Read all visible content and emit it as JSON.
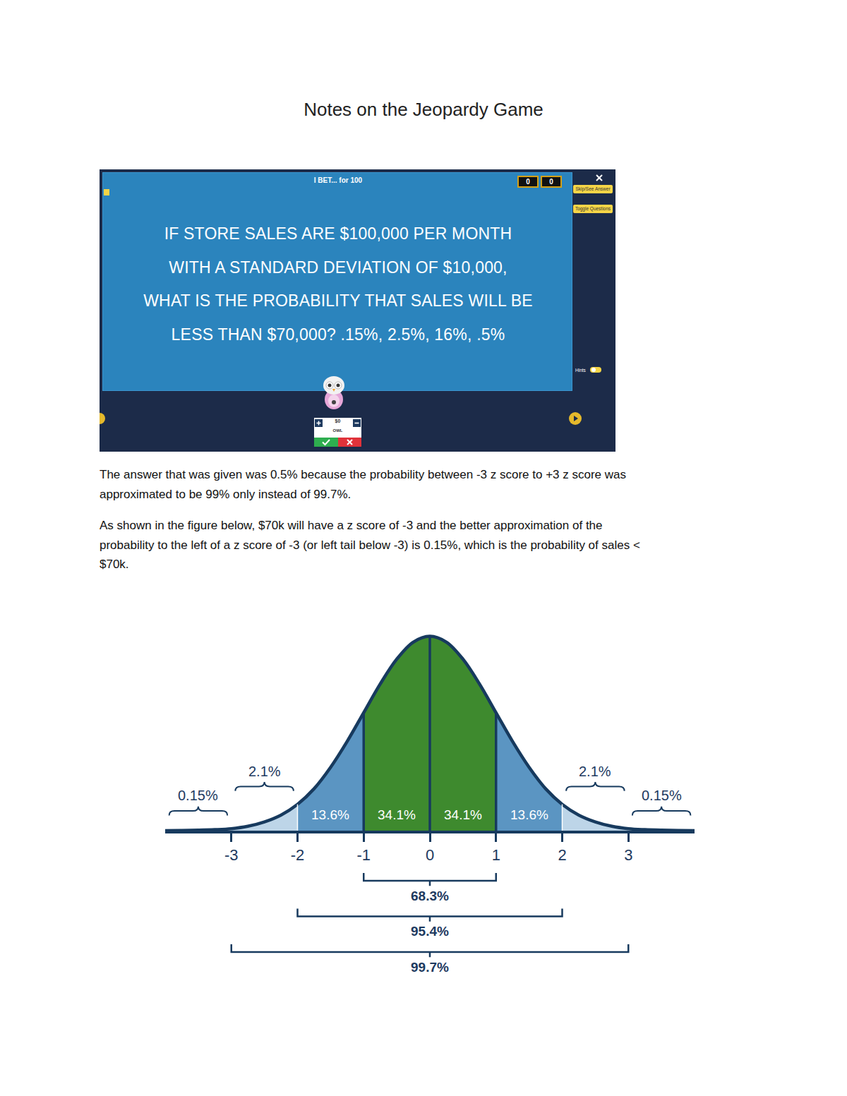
{
  "title": "Notes on the Jeopardy Game",
  "screenshot": {
    "header": "I BET... for 100",
    "scores": [
      0,
      0
    ],
    "buttons": [
      "Skip/See Answer",
      "Toggle Questions"
    ],
    "hints": "Hints",
    "question_lines": [
      "IF STORE SALES ARE $100,000 PER MONTH",
      "WITH A STANDARD DEVIATION OF $10,000,",
      "WHAT IS THE PROBABILITY THAT SALES WILL BE",
      "LESS THAN $70,000? .15%, 2.5%, 16%, .5%"
    ],
    "player": {
      "score": "$0",
      "name": "OWL"
    }
  },
  "paragraphs": [
    [
      "The answer that was given was 0.5% because the probability between -3 z score to +3 z score was",
      "approximated to be 99% only instead of 99.7%."
    ],
    [
      "As shown in the figure below, $70k will have a z score of -3 and the better approximation of the",
      "probability to the left of a z score of -3 (or left tail below -3) is 0.15%, which is the probability of sales <",
      "$70k."
    ]
  ],
  "chart_data": {
    "type": "area",
    "x": [
      -4,
      -3.75,
      -3.5,
      -3.25,
      -3,
      -2.75,
      -2.5,
      -2.25,
      -2,
      -1.75,
      -1.5,
      -1.25,
      -1,
      -0.75,
      -0.5,
      -0.25,
      0,
      0.25,
      0.5,
      0.75,
      1,
      1.25,
      1.5,
      1.75,
      2,
      2.25,
      2.5,
      2.75,
      3,
      3.25,
      3.5,
      3.75,
      4
    ],
    "values": [
      0.0001,
      0.0004,
      0.001,
      0.002,
      0.004,
      0.009,
      0.018,
      0.032,
      0.054,
      0.086,
      0.13,
      0.183,
      0.242,
      0.301,
      0.352,
      0.387,
      0.399,
      0.387,
      0.352,
      0.301,
      0.242,
      0.183,
      0.13,
      0.086,
      0.054,
      0.032,
      0.018,
      0.009,
      0.004,
      0.002,
      0.001,
      0.0004,
      0.0001
    ],
    "color": "#173a5e",
    "xlim": [
      -4,
      4
    ],
    "ylim": [
      0,
      0.42
    ],
    "xticks": [
      -3,
      -2,
      -1,
      0,
      1,
      2,
      3
    ],
    "tick_labels": "x",
    "grid": false,
    "regions": [
      {
        "range": [
          -4,
          -3
        ],
        "value": 0.15,
        "label": "0.15%",
        "color": "#e6eef5"
      },
      {
        "range": [
          -3,
          -2
        ],
        "value": 2.1,
        "label": "2.1%",
        "color": "#bdd5e8"
      },
      {
        "range": [
          -2,
          -1
        ],
        "value": 13.6,
        "label": "13.6%",
        "color": "#5b95c2"
      },
      {
        "range": [
          -1,
          0
        ],
        "value": 34.1,
        "label": "34.1%",
        "color": "#3e8a2e"
      },
      {
        "range": [
          0,
          1
        ],
        "value": 34.1,
        "label": "34.1%",
        "color": "#3e8a2e"
      },
      {
        "range": [
          1,
          2
        ],
        "value": 13.6,
        "label": "13.6%",
        "color": "#5b95c2"
      },
      {
        "range": [
          2,
          3
        ],
        "value": 2.1,
        "label": "2.1%",
        "color": "#bdd5e8"
      },
      {
        "range": [
          3,
          4
        ],
        "value": 0.15,
        "label": "0.15%",
        "color": "#e6eef5"
      }
    ],
    "spans": [
      {
        "range": [
          -1,
          1
        ],
        "value": 68.3,
        "label": "68.3%"
      },
      {
        "range": [
          -2,
          2
        ],
        "value": 95.4,
        "label": "95.4%"
      },
      {
        "range": [
          -3,
          3
        ],
        "value": 99.7,
        "label": "99.7%"
      }
    ]
  }
}
